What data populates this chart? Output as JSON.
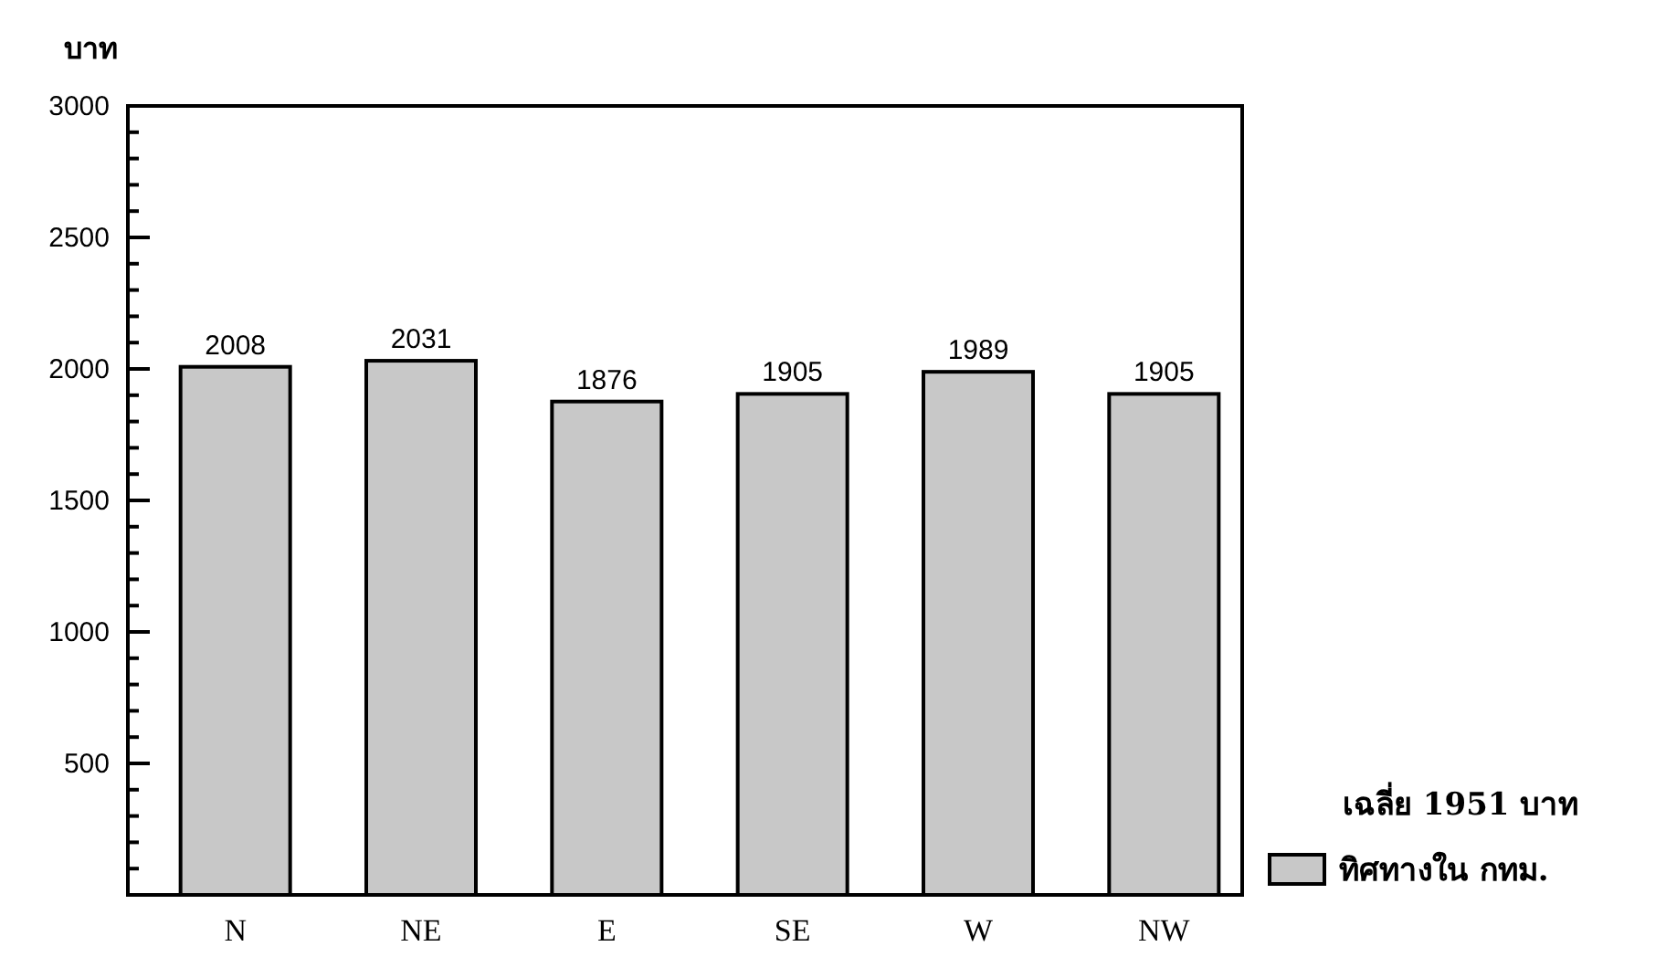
{
  "chart_data": {
    "type": "bar",
    "ylabel": "บาท",
    "categories": [
      "N",
      "NE",
      "E",
      "SE",
      "W",
      "NW"
    ],
    "series": [
      {
        "name": "ทิศทางใน กทม.",
        "color": "#c8c8c8",
        "values": [
          2008,
          2031,
          1876,
          1905,
          1989,
          1905
        ]
      }
    ],
    "data_labels": true,
    "ylim": [
      0,
      3000
    ],
    "yticks": [
      {
        "value": 0,
        "label": null
      },
      {
        "value": 100,
        "label": null
      },
      {
        "value": 200,
        "label": null
      },
      {
        "value": 300,
        "label": null
      },
      {
        "value": 400,
        "label": null
      },
      500,
      {
        "value": 600,
        "label": null
      },
      {
        "value": 700,
        "label": null
      },
      {
        "value": 800,
        "label": null
      },
      {
        "value": 900,
        "label": null
      },
      1000,
      {
        "value": 1100,
        "label": null
      },
      {
        "value": 1200,
        "label": null
      },
      {
        "value": 1300,
        "label": null
      },
      {
        "value": 1400,
        "label": null
      },
      1500,
      {
        "value": 1600,
        "label": null
      },
      {
        "value": 1700,
        "label": null
      },
      {
        "value": 1800,
        "label": null
      },
      {
        "value": 1900,
        "label": null
      },
      2000,
      {
        "value": 2100,
        "label": null
      },
      {
        "value": 2200,
        "label": null
      },
      {
        "value": 2300,
        "label": null
      },
      {
        "value": 2400,
        "label": null
      },
      2500,
      {
        "value": 2600,
        "label": null
      },
      {
        "value": 2700,
        "label": null
      },
      {
        "value": 2800,
        "label": null
      },
      {
        "value": 2900,
        "label": null
      },
      3000
    ],
    "grid": false,
    "legend": "bottom right",
    "annotations": [
      "เฉลี่ย 1951 บาท"
    ]
  }
}
